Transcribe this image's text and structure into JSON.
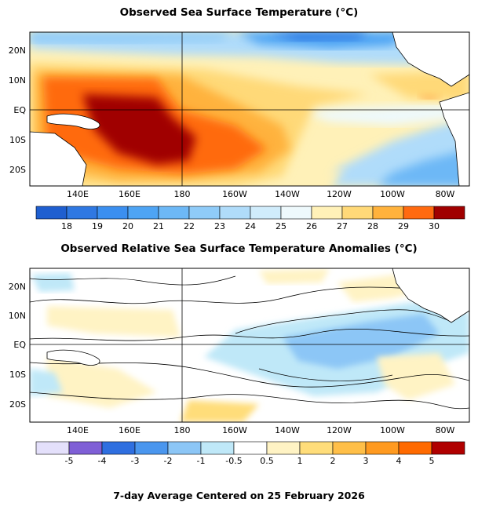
{
  "map_top": {
    "title": "Observed Sea Surface Temperature (°C)",
    "lon_ticks": [
      "140E",
      "160E",
      "180",
      "160W",
      "140W",
      "120W",
      "100W",
      "80W"
    ],
    "lat_ticks": [
      "20N",
      "10N",
      "EQ",
      "10S",
      "20S"
    ],
    "legend_values": [
      "18",
      "19",
      "20",
      "21",
      "22",
      "23",
      "24",
      "25",
      "26",
      "27",
      "28",
      "29",
      "30"
    ],
    "legend_colors": [
      "#1f5fd0",
      "#2f78e2",
      "#3b8ff0",
      "#4ea4f4",
      "#6db8f6",
      "#8fcbf8",
      "#b0dcfa",
      "#d0ecfb",
      "#eef9fc",
      "#fff1b8",
      "#ffd978",
      "#ffb23c",
      "#ff6a10",
      "#a00000"
    ]
  },
  "map_bottom": {
    "title": "Observed Relative Sea Surface Temperature Anomalies (°C)",
    "lon_ticks": [
      "140E",
      "160E",
      "180",
      "160W",
      "140W",
      "120W",
      "100W",
      "80W"
    ],
    "lat_ticks": [
      "20N",
      "10N",
      "EQ",
      "10S",
      "20S"
    ],
    "legend_values": [
      "-5",
      "-4",
      "-3",
      "-2",
      "-1",
      "-0.5",
      "0.5",
      "1",
      "2",
      "3",
      "4",
      "5"
    ],
    "legend_colors": [
      "#e4e0fb",
      "#7f5fd6",
      "#2f6fe0",
      "#4a96ee",
      "#8cc6f6",
      "#bfe8f8",
      "#ffffff",
      "#fff3c4",
      "#ffdd7a",
      "#ffbf48",
      "#ff9a20",
      "#ff6a00",
      "#b00000"
    ]
  },
  "footer": "7-day Average Centered on 25 February 2026"
}
